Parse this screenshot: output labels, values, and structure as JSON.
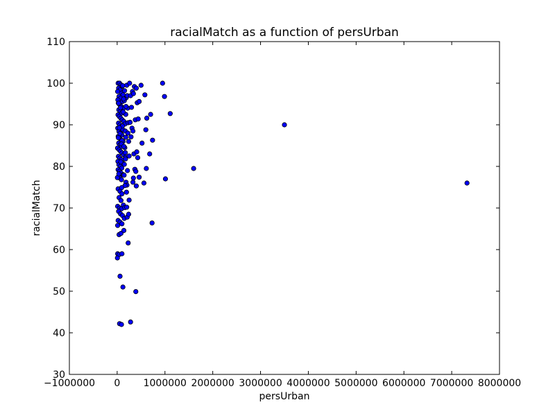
{
  "chart_data": {
    "type": "scatter",
    "title": "racialMatch as a function of persUrban",
    "xlabel": "persUrban",
    "ylabel": "racialMatch",
    "xlim": [
      -1000000,
      8000000
    ],
    "ylim": [
      30,
      110
    ],
    "xticks": [
      -1000000,
      0,
      1000000,
      2000000,
      3000000,
      4000000,
      5000000,
      6000000,
      7000000,
      8000000
    ],
    "xtick_labels": [
      "−1000000",
      "0",
      "1000000",
      "2000000",
      "3000000",
      "4000000",
      "5000000",
      "6000000",
      "7000000",
      "8000000"
    ],
    "yticks": [
      30,
      40,
      50,
      60,
      70,
      80,
      90,
      100,
      110
    ],
    "ytick_labels": [
      "30",
      "40",
      "50",
      "60",
      "70",
      "80",
      "90",
      "100",
      "110"
    ],
    "grid": false,
    "marker_color": "#0000ff",
    "marker_edge_color": "#000000",
    "points": [
      [
        20000,
        100
      ],
      [
        50000,
        100
      ],
      [
        80000,
        99.6
      ],
      [
        100000,
        99.2
      ],
      [
        30000,
        98.8
      ],
      [
        60000,
        98.4
      ],
      [
        10000,
        98
      ],
      [
        90000,
        97.6
      ],
      [
        120000,
        97.2
      ],
      [
        40000,
        96.8
      ],
      [
        70000,
        96.4
      ],
      [
        15000,
        96
      ],
      [
        110000,
        95.6
      ],
      [
        25000,
        95.2
      ],
      [
        55000,
        94.8
      ],
      [
        85000,
        94.4
      ],
      [
        130000,
        94
      ],
      [
        35000,
        93.6
      ],
      [
        65000,
        93.2
      ],
      [
        95000,
        92.8
      ],
      [
        18000,
        92.4
      ],
      [
        45000,
        92
      ],
      [
        75000,
        91.6
      ],
      [
        105000,
        91.2
      ],
      [
        140000,
        90.8
      ],
      [
        28000,
        90.4
      ],
      [
        58000,
        90
      ],
      [
        88000,
        89.6
      ],
      [
        12000,
        89.2
      ],
      [
        118000,
        88.8
      ],
      [
        38000,
        88.4
      ],
      [
        68000,
        88
      ],
      [
        98000,
        87.6
      ],
      [
        22000,
        87.2
      ],
      [
        52000,
        86.8
      ],
      [
        82000,
        86.4
      ],
      [
        125000,
        86
      ],
      [
        32000,
        85.6
      ],
      [
        62000,
        85.2
      ],
      [
        92000,
        84.8
      ],
      [
        8000,
        84.4
      ],
      [
        42000,
        84
      ],
      [
        72000,
        83.6
      ],
      [
        102000,
        83.2
      ],
      [
        135000,
        82.8
      ],
      [
        26000,
        82.4
      ],
      [
        56000,
        82
      ],
      [
        86000,
        81.6
      ],
      [
        16000,
        81.2
      ],
      [
        116000,
        80.8
      ],
      [
        36000,
        80.4
      ],
      [
        66000,
        80
      ],
      [
        96000,
        79.6
      ],
      [
        20000,
        79.2
      ],
      [
        50000,
        78.8
      ],
      [
        80000,
        78.4
      ],
      [
        128000,
        78
      ],
      [
        30000,
        77.6
      ],
      [
        60000,
        77.2
      ],
      [
        90000,
        76.8
      ],
      [
        5000,
        77.3
      ],
      [
        150000,
        80.5
      ],
      [
        160000,
        84.5
      ],
      [
        170000,
        88.5
      ],
      [
        180000,
        92.5
      ],
      [
        190000,
        96.5
      ],
      [
        155000,
        98.2
      ],
      [
        165000,
        90.2
      ],
      [
        175000,
        82.2
      ],
      [
        185000,
        76.2
      ],
      [
        200000,
        99.5
      ],
      [
        210000,
        97
      ],
      [
        220000,
        94
      ],
      [
        230000,
        90.5
      ],
      [
        240000,
        86
      ],
      [
        250000,
        82.5
      ],
      [
        215000,
        79
      ],
      [
        205000,
        75.5
      ],
      [
        195000,
        73.8
      ],
      [
        225000,
        88
      ],
      [
        260000,
        100
      ],
      [
        280000,
        97
      ],
      [
        300000,
        94.2
      ],
      [
        320000,
        98
      ],
      [
        340000,
        97.5
      ],
      [
        270000,
        90.6
      ],
      [
        290000,
        87.1
      ],
      [
        310000,
        89.2
      ],
      [
        330000,
        88.5
      ],
      [
        360000,
        99.2
      ],
      [
        380000,
        91.2
      ],
      [
        400000,
        98.8
      ],
      [
        420000,
        95.3
      ],
      [
        440000,
        91.4
      ],
      [
        460000,
        95.6
      ],
      [
        500000,
        99.5
      ],
      [
        520000,
        85.6
      ],
      [
        350000,
        83
      ],
      [
        370000,
        79.3
      ],
      [
        390000,
        78.8
      ],
      [
        410000,
        83.5
      ],
      [
        430000,
        82.1
      ],
      [
        340000,
        77.2
      ],
      [
        330000,
        76.2
      ],
      [
        460000,
        77.4
      ],
      [
        400000,
        75.3
      ],
      [
        580000,
        97.2
      ],
      [
        600000,
        88.8
      ],
      [
        620000,
        91.6
      ],
      [
        560000,
        76
      ],
      [
        610000,
        79.5
      ],
      [
        700000,
        92.5
      ],
      [
        740000,
        86.3
      ],
      [
        680000,
        83
      ],
      [
        950000,
        100
      ],
      [
        990000,
        96.8
      ],
      [
        1110000,
        92.7
      ],
      [
        1010000,
        77
      ],
      [
        1600000,
        79.5
      ],
      [
        3500000,
        90
      ],
      [
        7320000,
        76
      ],
      [
        730000,
        66.4
      ],
      [
        20000,
        74.6
      ],
      [
        60000,
        74
      ],
      [
        100000,
        73.4
      ],
      [
        40000,
        72.5
      ],
      [
        80000,
        71.8
      ],
      [
        250000,
        71.9
      ],
      [
        10000,
        70.4
      ],
      [
        50000,
        70
      ],
      [
        90000,
        69.8
      ],
      [
        130000,
        70.7
      ],
      [
        160000,
        70.1
      ],
      [
        200000,
        70.2
      ],
      [
        30000,
        69.2
      ],
      [
        70000,
        68.6
      ],
      [
        110000,
        68.2
      ],
      [
        150000,
        67.5
      ],
      [
        210000,
        67.8
      ],
      [
        240000,
        68.5
      ],
      [
        20000,
        67
      ],
      [
        60000,
        66.6
      ],
      [
        100000,
        66.2
      ],
      [
        10000,
        65.8
      ],
      [
        40000,
        63.6
      ],
      [
        80000,
        63.9
      ],
      [
        140000,
        64.6
      ],
      [
        230000,
        61.6
      ],
      [
        10000,
        59
      ],
      [
        40000,
        58.8
      ],
      [
        100000,
        59
      ],
      [
        5000,
        58
      ],
      [
        60000,
        53.6
      ],
      [
        120000,
        51
      ],
      [
        390000,
        49.9
      ],
      [
        50000,
        42.2
      ],
      [
        90000,
        42
      ],
      [
        280000,
        42.6
      ],
      [
        30000,
        95.2
      ],
      [
        70000,
        94.1
      ],
      [
        150000,
        95.8
      ],
      [
        100000,
        86.2
      ],
      [
        180000,
        87
      ],
      [
        90000,
        85.4
      ],
      [
        60000,
        87.9
      ],
      [
        140000,
        84.8
      ],
      [
        170000,
        83.3
      ],
      [
        110000,
        89.7
      ],
      [
        125000,
        93.1
      ],
      [
        185000,
        94.4
      ],
      [
        75000,
        81.1
      ],
      [
        145000,
        77.9
      ],
      [
        35000,
        78.2
      ],
      [
        165000,
        75.4
      ],
      [
        95000,
        74.9
      ],
      [
        45000,
        89.3
      ],
      [
        25000,
        86.9
      ],
      [
        175000,
        81.8
      ],
      [
        135000,
        96.2
      ],
      [
        115000,
        99.4
      ]
    ]
  }
}
